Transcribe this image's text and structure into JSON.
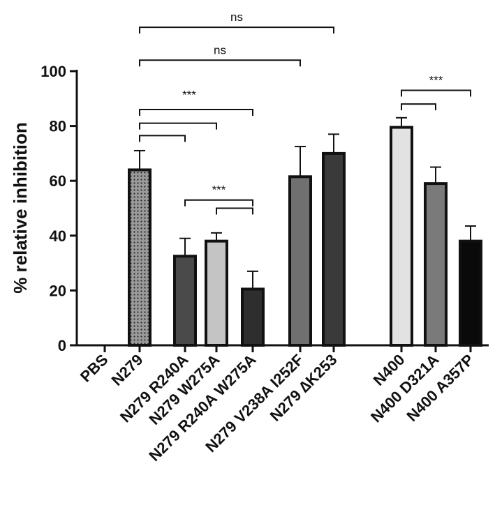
{
  "chart_data": {
    "type": "bar",
    "ylabel": "% relative inhibition",
    "ylim": [
      0,
      100
    ],
    "yticks": [
      0,
      20,
      40,
      60,
      80,
      100
    ],
    "grid": false,
    "categories": [
      "PBS",
      "N279",
      "N279 R240A",
      "N279 W275A",
      "N279 R240A W275A",
      "N279 V238A I252F",
      "N279 ∆K253",
      "N400",
      "N400 D321A",
      "N400 A357P"
    ],
    "values": [
      0,
      64,
      32.5,
      38,
      20.5,
      61.5,
      70,
      79.5,
      59,
      38
    ],
    "errors": [
      0,
      7,
      6.5,
      3,
      6.5,
      11,
      7,
      3.5,
      6,
      5.5
    ],
    "bar_styles": [
      {
        "fill": "none",
        "stroke": "none"
      },
      {
        "fill": "dots",
        "stroke": "#111111"
      },
      {
        "fill": "#4a4a4a",
        "stroke": "#111111"
      },
      {
        "fill": "#c4c4c4",
        "stroke": "#111111"
      },
      {
        "fill": "#2e2e2e",
        "stroke": "#111111"
      },
      {
        "fill": "#707070",
        "stroke": "#111111"
      },
      {
        "fill": "#3a3a3a",
        "stroke": "#111111"
      },
      {
        "fill": "#e2e2e2",
        "stroke": "#111111"
      },
      {
        "fill": "#7a7a7a",
        "stroke": "#111111"
      },
      {
        "fill": "#0a0a0a",
        "stroke": "#111111"
      }
    ],
    "significance": [
      {
        "from": 1,
        "to": 6,
        "level": 116,
        "label": "ns"
      },
      {
        "from": 1,
        "to": 5,
        "level": 104,
        "label": "ns"
      },
      {
        "from": 1,
        "to": 4,
        "level": 86,
        "label": ""
      },
      {
        "from": 1,
        "to": 3,
        "level": 81,
        "label": ""
      },
      {
        "from": 1,
        "to": 2,
        "level": 76.5,
        "label": "",
        "group_label": "***",
        "group_label_level": 90
      },
      {
        "from": 2,
        "to": 4,
        "level": 53,
        "label": "***"
      },
      {
        "from": 3,
        "to": 4,
        "level": 50,
        "label": ""
      },
      {
        "from": 7,
        "to": 9,
        "level": 93,
        "label": "***"
      },
      {
        "from": 7,
        "to": 8,
        "level": 88,
        "label": ""
      }
    ]
  }
}
